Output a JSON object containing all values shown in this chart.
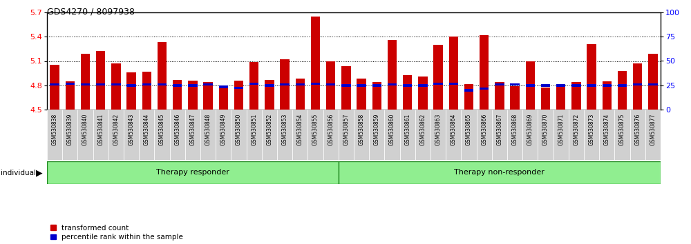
{
  "title": "GDS4270 / 8097938",
  "samples": [
    "GSM530838",
    "GSM530839",
    "GSM530840",
    "GSM530841",
    "GSM530842",
    "GSM530843",
    "GSM530844",
    "GSM530845",
    "GSM530846",
    "GSM530847",
    "GSM530848",
    "GSM530849",
    "GSM530850",
    "GSM530851",
    "GSM530852",
    "GSM530853",
    "GSM530854",
    "GSM530855",
    "GSM530856",
    "GSM530857",
    "GSM530858",
    "GSM530859",
    "GSM530860",
    "GSM530861",
    "GSM530862",
    "GSM530863",
    "GSM530864",
    "GSM530865",
    "GSM530866",
    "GSM530867",
    "GSM530868",
    "GSM530869",
    "GSM530870",
    "GSM530871",
    "GSM530872",
    "GSM530873",
    "GSM530874",
    "GSM530875",
    "GSM530876",
    "GSM530877"
  ],
  "bar_values": [
    5.05,
    4.85,
    5.19,
    5.22,
    5.07,
    4.96,
    4.97,
    5.33,
    4.87,
    4.86,
    4.84,
    4.79,
    4.86,
    5.09,
    4.87,
    5.12,
    4.88,
    5.65,
    5.1,
    5.04,
    4.88,
    4.84,
    5.36,
    4.93,
    4.91,
    5.3,
    5.4,
    4.82,
    5.42,
    4.84,
    4.79,
    5.1,
    4.77,
    4.8,
    4.84,
    5.31,
    4.85,
    4.98,
    5.07,
    5.19
  ],
  "percentile_values": [
    4.81,
    4.82,
    4.81,
    4.81,
    4.81,
    4.8,
    4.81,
    4.81,
    4.8,
    4.8,
    4.81,
    4.78,
    4.77,
    4.82,
    4.8,
    4.81,
    4.81,
    4.82,
    4.81,
    4.8,
    4.8,
    4.8,
    4.81,
    4.8,
    4.8,
    4.82,
    4.82,
    4.74,
    4.76,
    4.81,
    4.81,
    4.8,
    4.8,
    4.8,
    4.8,
    4.8,
    4.8,
    4.8,
    4.81,
    4.81
  ],
  "group1_count": 19,
  "group2_count": 21,
  "group1_label": "Therapy responder",
  "group2_label": "Therapy non-responder",
  "group_color": "#90EE90",
  "group_edge_color": "#228B22",
  "ymin": 4.5,
  "ymax": 5.7,
  "yticks": [
    4.5,
    4.8,
    5.1,
    5.4,
    5.7
  ],
  "y2min": 0,
  "y2max": 100,
  "y2ticks": [
    0,
    25,
    50,
    75,
    100
  ],
  "bar_color": "#CC0000",
  "blue_color": "#0000CC",
  "bar_width": 0.6,
  "legend_labels": [
    "transformed count",
    "percentile rank within the sample"
  ],
  "tick_bg_color": "#d0d0d0"
}
